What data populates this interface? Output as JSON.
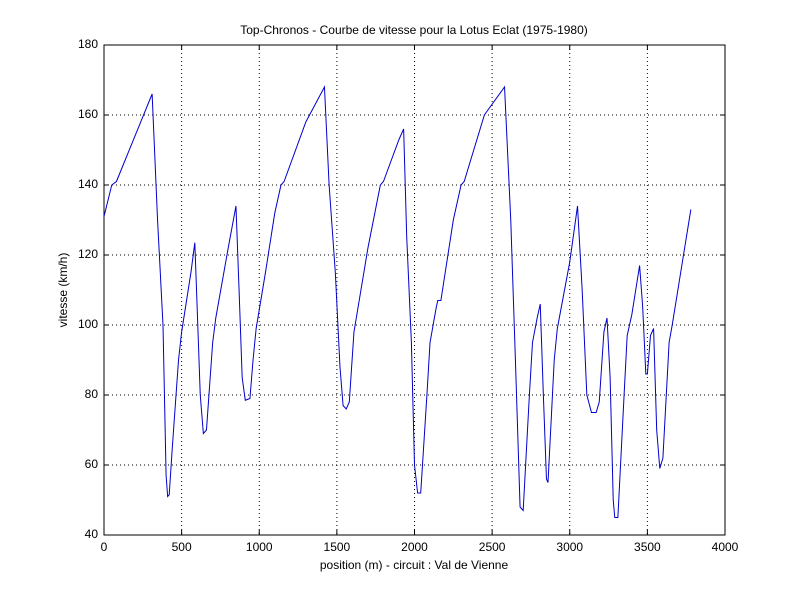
{
  "chart_data": {
    "type": "line",
    "title": "Top-Chronos - Courbe de vitesse pour la Lotus Eclat (1975-1980)",
    "xlabel": "position (m) - circuit : Val de Vienne",
    "ylabel": "vitesse (km/h)",
    "xlim": [
      0,
      4000
    ],
    "ylim": [
      40,
      180
    ],
    "xticks": [
      0,
      500,
      1000,
      1500,
      2000,
      2500,
      3000,
      3500,
      4000
    ],
    "yticks": [
      40,
      60,
      80,
      100,
      120,
      140,
      160,
      180
    ],
    "grid": true,
    "x": [
      0,
      50,
      80,
      310,
      345,
      380,
      400,
      410,
      420,
      440,
      480,
      500,
      560,
      585,
      600,
      620,
      640,
      660,
      700,
      720,
      800,
      850,
      870,
      890,
      910,
      940,
      960,
      980,
      1040,
      1100,
      1140,
      1160,
      1300,
      1420,
      1450,
      1490,
      1520,
      1540,
      1560,
      1580,
      1610,
      1700,
      1780,
      1800,
      1900,
      1930,
      1950,
      1980,
      2000,
      2020,
      2040,
      2080,
      2100,
      2140,
      2150,
      2170,
      2250,
      2300,
      2320,
      2450,
      2580,
      2620,
      2650,
      2680,
      2700,
      2740,
      2760,
      2790,
      2810,
      2830,
      2850,
      2860,
      2900,
      2920,
      3000,
      3050,
      3080,
      3110,
      3140,
      3170,
      3190,
      3220,
      3240,
      3260,
      3280,
      3290,
      3310,
      3350,
      3370,
      3400,
      3450,
      3470,
      3490,
      3500,
      3520,
      3540,
      3560,
      3580,
      3600,
      3640,
      3660,
      3780
    ],
    "series": [
      {
        "color": "#0000cc",
        "values": [
          131,
          140,
          141,
          166,
          130,
          100,
          57,
          51,
          51.5,
          65,
          90,
          98,
          115,
          123.5,
          105,
          80,
          69,
          70,
          95,
          102,
          122,
          134,
          110,
          85,
          78.5,
          79,
          90,
          99,
          115,
          132,
          140,
          141,
          158,
          168,
          140,
          115,
          88,
          77,
          76,
          78,
          98,
          122,
          140,
          141,
          153,
          156,
          125,
          95,
          60,
          52,
          52,
          80,
          95,
          105,
          107,
          107,
          130,
          140,
          141,
          160,
          168,
          130,
          90,
          48,
          47,
          80,
          95,
          102,
          106,
          80,
          56,
          55,
          90,
          99,
          118,
          134,
          110,
          80,
          75,
          75,
          78,
          98,
          102,
          85,
          50,
          45,
          45,
          80,
          97,
          103,
          117,
          105,
          86,
          86,
          97,
          99,
          70,
          59,
          62,
          95,
          100,
          133
        ]
      }
    ]
  }
}
